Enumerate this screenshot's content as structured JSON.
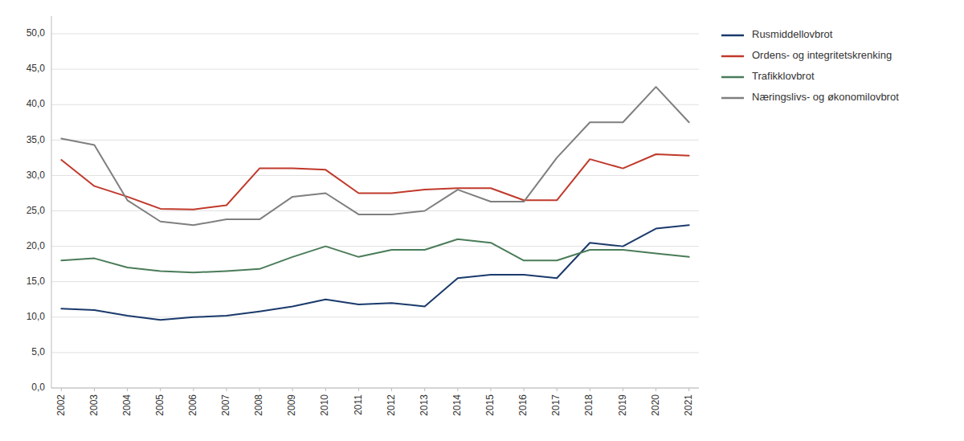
{
  "chart_data": {
    "type": "line",
    "x": [
      2002,
      2003,
      2004,
      2005,
      2006,
      2007,
      2008,
      2009,
      2010,
      2011,
      2012,
      2013,
      2014,
      2015,
      2016,
      2017,
      2018,
      2019,
      2020,
      2021
    ],
    "series": [
      {
        "name": "Rusmiddellovbrot",
        "color": "#1a3a6b",
        "values": [
          11.2,
          11.0,
          10.2,
          9.6,
          10.0,
          10.2,
          10.8,
          11.5,
          12.5,
          11.8,
          12.0,
          11.5,
          15.5,
          16.0,
          16.0,
          15.5,
          20.5,
          20.0,
          22.5,
          23.0
        ]
      },
      {
        "name": "Ordens- og integritetskrenking",
        "color": "#c0392b",
        "values": [
          32.2,
          28.5,
          27.0,
          25.3,
          25.2,
          25.8,
          31.0,
          31.0,
          30.8,
          27.5,
          27.5,
          28.0,
          28.2,
          28.2,
          26.5,
          26.5,
          32.3,
          31.0,
          33.0,
          32.8
        ]
      },
      {
        "name": "Trafikklovbrot",
        "color": "#4a7c59",
        "values": [
          18.0,
          18.3,
          17.0,
          16.5,
          16.3,
          16.5,
          16.8,
          18.5,
          20.0,
          18.5,
          19.5,
          19.5,
          21.0,
          20.5,
          18.0,
          18.0,
          19.5,
          19.5,
          19.0,
          18.5
        ]
      },
      {
        "name": "Næringslivs- og økonomilovbrot",
        "color": "#7f7f7f",
        "values": [
          35.2,
          34.3,
          26.5,
          23.5,
          23.0,
          23.8,
          23.8,
          27.0,
          27.5,
          24.5,
          24.5,
          25.0,
          28.0,
          26.3,
          26.3,
          32.5,
          37.5,
          37.5,
          42.5,
          37.5
        ]
      }
    ],
    "xlim": [
      2001.7,
      2021.3
    ],
    "xticks": [
      2002,
      2003,
      2004,
      2005,
      2006,
      2007,
      2008,
      2009,
      2010,
      2011,
      2012,
      2013,
      2014,
      2015,
      2016,
      2017,
      2018,
      2019,
      2020,
      2021
    ],
    "ylim": [
      0,
      52.5
    ],
    "yticks": [
      {
        "value": 0.0,
        "label": "0,0"
      },
      {
        "value": 5.0,
        "label": "5,0"
      },
      {
        "value": 10.0,
        "label": "10,0"
      },
      {
        "value": 15.0,
        "label": "15,0"
      },
      {
        "value": 20.0,
        "label": "20,0"
      },
      {
        "value": 25.0,
        "label": "25,0"
      },
      {
        "value": 30.0,
        "label": "30,0"
      },
      {
        "value": 35.0,
        "label": "35,0"
      },
      {
        "value": 40.0,
        "label": "40,0"
      },
      {
        "value": 45.0,
        "label": "45,0"
      },
      {
        "value": 50.0,
        "label": "50,0"
      }
    ],
    "grid": true,
    "legend": "right"
  }
}
